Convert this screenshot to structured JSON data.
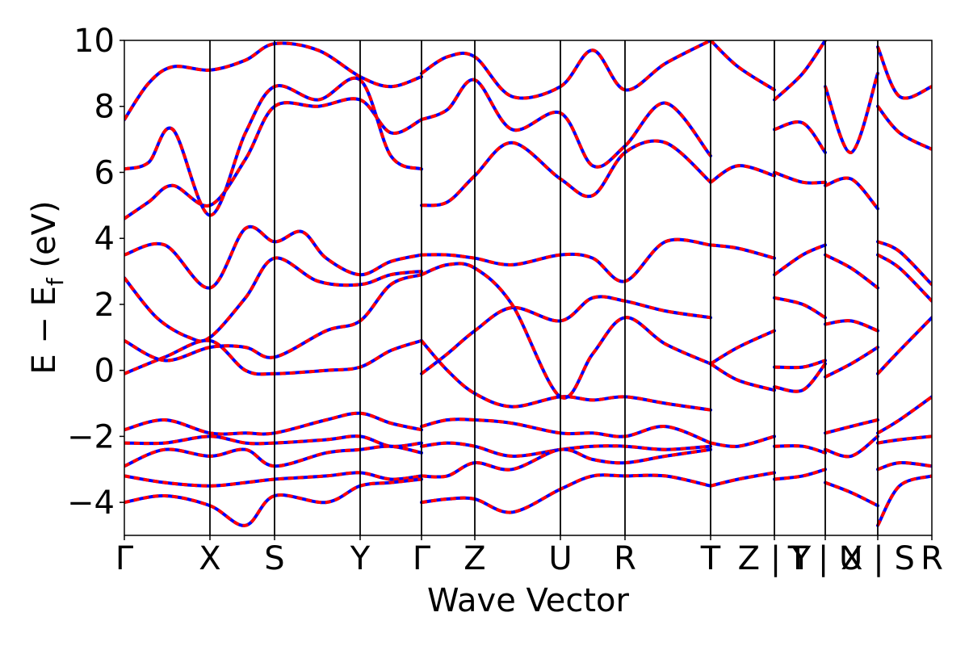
{
  "chart_data": {
    "type": "line",
    "title": "",
    "xlabel": "Wave Vector",
    "ylabel": "E − E",
    "ylabel_subscript": "f",
    "ylabel_unit": " (eV)",
    "ylim": [
      -5,
      10
    ],
    "yticks": [
      -4,
      -2,
      0,
      2,
      4,
      6,
      8,
      10
    ],
    "ytick_labels": [
      "−4",
      "−2",
      "0",
      "2",
      "4",
      "6",
      "8",
      "10"
    ],
    "k_points": [
      {
        "label": "Γ",
        "x": 0.0
      },
      {
        "label": "X",
        "x": 0.106
      },
      {
        "label": "S",
        "x": 0.186
      },
      {
        "label": "Y",
        "x": 0.292
      },
      {
        "label": "Γ",
        "x": 0.368
      },
      {
        "label": "Z",
        "x": 0.434
      },
      {
        "label": "U",
        "x": 0.54
      },
      {
        "label": "R",
        "x": 0.62
      },
      {
        "label": "T",
        "x": 0.726
      },
      {
        "label": "Z | Y",
        "x": 0.805
      },
      {
        "label": "T | U",
        "x": 0.868
      },
      {
        "label": "X | S",
        "x": 0.933
      },
      {
        "label": "R",
        "x": 1.0
      }
    ],
    "grid": false,
    "series": [
      {
        "color": "#0000ff",
        "style": "solid"
      },
      {
        "color": "#ff0000",
        "style": "dashed"
      }
    ],
    "bands": [
      {
        "x": [
          0.0,
          0.05,
          0.106,
          0.15,
          0.186,
          0.25,
          0.292,
          0.33,
          0.368
        ],
        "y": [
          -0.1,
          0.4,
          0.9,
          0.0,
          -0.1,
          0.0,
          0.1,
          0.6,
          0.9
        ]
      },
      {
        "x": [
          0.0,
          0.05,
          0.106,
          0.15,
          0.186,
          0.25,
          0.292,
          0.33,
          0.368
        ],
        "y": [
          0.9,
          0.3,
          0.7,
          0.7,
          0.4,
          1.2,
          1.5,
          2.6,
          2.9
        ]
      },
      {
        "x": [
          0.0,
          0.04,
          0.08,
          0.106,
          0.15,
          0.186,
          0.24,
          0.292,
          0.33,
          0.368
        ],
        "y": [
          2.8,
          1.6,
          1.0,
          1.0,
          2.2,
          3.4,
          2.7,
          2.6,
          2.9,
          3.0
        ]
      },
      {
        "x": [
          0.0,
          0.05,
          0.106,
          0.15,
          0.186,
          0.22,
          0.25,
          0.292,
          0.33,
          0.368
        ],
        "y": [
          3.5,
          3.8,
          2.5,
          4.3,
          3.9,
          4.2,
          3.4,
          2.9,
          3.3,
          3.5
        ]
      },
      {
        "x": [
          0.0,
          0.03,
          0.06,
          0.106,
          0.15,
          0.186,
          0.24,
          0.292,
          0.33,
          0.368
        ],
        "y": [
          4.6,
          5.1,
          5.6,
          5.0,
          6.4,
          8.0,
          8.0,
          8.2,
          7.2,
          7.6
        ]
      },
      {
        "x": [
          0.0,
          0.03,
          0.06,
          0.106,
          0.15,
          0.186,
          0.24,
          0.292,
          0.33,
          0.368
        ],
        "y": [
          6.1,
          6.3,
          7.3,
          4.7,
          7.2,
          8.6,
          8.2,
          8.8,
          6.5,
          6.1
        ]
      },
      {
        "x": [
          0.0,
          0.03,
          0.06,
          0.106,
          0.15,
          0.186,
          0.24,
          0.292,
          0.33,
          0.368
        ],
        "y": [
          7.6,
          8.7,
          9.2,
          9.1,
          9.4,
          9.9,
          9.7,
          8.9,
          8.6,
          8.9
        ]
      },
      {
        "x": [
          0.0,
          0.05,
          0.106,
          0.15,
          0.186,
          0.25,
          0.292,
          0.33,
          0.368
        ],
        "y": [
          -1.8,
          -1.5,
          -1.9,
          -1.9,
          -1.9,
          -1.5,
          -1.3,
          -1.6,
          -1.8
        ]
      },
      {
        "x": [
          0.0,
          0.05,
          0.106,
          0.15,
          0.186,
          0.25,
          0.292,
          0.33,
          0.368
        ],
        "y": [
          -2.2,
          -2.2,
          -2.0,
          -2.2,
          -2.2,
          -2.1,
          -2.0,
          -2.3,
          -2.2
        ]
      },
      {
        "x": [
          0.0,
          0.05,
          0.106,
          0.15,
          0.186,
          0.25,
          0.292,
          0.33,
          0.368
        ],
        "y": [
          -2.9,
          -2.4,
          -2.6,
          -2.4,
          -2.9,
          -2.5,
          -2.4,
          -2.3,
          -2.5
        ]
      },
      {
        "x": [
          0.0,
          0.05,
          0.106,
          0.15,
          0.186,
          0.25,
          0.292,
          0.33,
          0.368
        ],
        "y": [
          -3.2,
          -3.4,
          -3.5,
          -3.4,
          -3.3,
          -3.2,
          -3.1,
          -3.3,
          -3.2
        ]
      },
      {
        "x": [
          0.0,
          0.05,
          0.106,
          0.15,
          0.186,
          0.25,
          0.292,
          0.33,
          0.368
        ],
        "y": [
          -4.0,
          -3.8,
          -4.1,
          -4.7,
          -3.8,
          -4.0,
          -3.5,
          -3.4,
          -3.3
        ]
      },
      {
        "x": [
          0.368,
          0.4,
          0.434,
          0.48,
          0.54,
          0.58,
          0.62,
          0.67,
          0.726
        ],
        "y": [
          -0.1,
          0.5,
          1.2,
          1.9,
          1.5,
          2.2,
          2.1,
          1.8,
          1.6
        ]
      },
      {
        "x": [
          0.368,
          0.4,
          0.434,
          0.48,
          0.54,
          0.58,
          0.62,
          0.67,
          0.726
        ],
        "y": [
          0.9,
          0.0,
          -0.7,
          -1.1,
          -0.8,
          -0.9,
          -0.8,
          -1.0,
          -1.2
        ]
      },
      {
        "x": [
          0.368,
          0.4,
          0.434,
          0.48,
          0.54,
          0.58,
          0.62,
          0.67,
          0.726
        ],
        "y": [
          2.9,
          3.2,
          3.1,
          2.0,
          -0.8,
          0.5,
          1.6,
          0.8,
          0.2
        ]
      },
      {
        "x": [
          0.368,
          0.4,
          0.434,
          0.48,
          0.54,
          0.58,
          0.62,
          0.67,
          0.726
        ],
        "y": [
          3.5,
          3.5,
          3.4,
          3.2,
          3.5,
          3.4,
          2.7,
          3.9,
          3.8
        ]
      },
      {
        "x": [
          0.368,
          0.4,
          0.434,
          0.48,
          0.54,
          0.58,
          0.62,
          0.67,
          0.726
        ],
        "y": [
          5.0,
          5.1,
          5.9,
          6.9,
          5.8,
          5.3,
          6.6,
          6.9,
          5.7
        ]
      },
      {
        "x": [
          0.368,
          0.4,
          0.434,
          0.48,
          0.54,
          0.58,
          0.62,
          0.67,
          0.726
        ],
        "y": [
          7.6,
          7.9,
          8.8,
          7.3,
          7.8,
          6.2,
          6.8,
          8.1,
          6.5
        ]
      },
      {
        "x": [
          0.368,
          0.4,
          0.434,
          0.48,
          0.54,
          0.58,
          0.62,
          0.67,
          0.726
        ],
        "y": [
          9.0,
          9.5,
          9.5,
          8.3,
          8.6,
          9.7,
          8.5,
          9.3,
          10.0
        ]
      },
      {
        "x": [
          0.368,
          0.4,
          0.434,
          0.48,
          0.54,
          0.58,
          0.62,
          0.67,
          0.726
        ],
        "y": [
          -1.7,
          -1.5,
          -1.5,
          -1.6,
          -1.9,
          -1.9,
          -2.0,
          -1.7,
          -2.2
        ]
      },
      {
        "x": [
          0.368,
          0.4,
          0.434,
          0.48,
          0.54,
          0.58,
          0.62,
          0.67,
          0.726
        ],
        "y": [
          -2.3,
          -2.2,
          -2.3,
          -2.6,
          -2.4,
          -2.3,
          -2.3,
          -2.4,
          -2.3
        ]
      },
      {
        "x": [
          0.368,
          0.4,
          0.434,
          0.48,
          0.54,
          0.58,
          0.62,
          0.67,
          0.726
        ],
        "y": [
          -3.2,
          -3.2,
          -2.8,
          -3.0,
          -2.4,
          -2.7,
          -2.8,
          -2.6,
          -2.4
        ]
      },
      {
        "x": [
          0.368,
          0.4,
          0.434,
          0.48,
          0.54,
          0.58,
          0.62,
          0.67,
          0.726
        ],
        "y": [
          -4.0,
          -3.9,
          -3.9,
          -4.3,
          -3.6,
          -3.2,
          -3.2,
          -3.2,
          -3.5
        ]
      },
      {
        "x": [
          0.726,
          0.76,
          0.805
        ],
        "y": [
          0.2,
          0.7,
          1.2
        ]
      },
      {
        "x": [
          0.726,
          0.76,
          0.805
        ],
        "y": [
          0.2,
          -0.3,
          -0.6
        ]
      },
      {
        "x": [
          0.726,
          0.76,
          0.805
        ],
        "y": [
          3.8,
          3.7,
          3.4
        ]
      },
      {
        "x": [
          0.726,
          0.76,
          0.805
        ],
        "y": [
          5.7,
          6.2,
          5.9
        ]
      },
      {
        "x": [
          0.726,
          0.76,
          0.805
        ],
        "y": [
          10.0,
          9.2,
          8.5
        ]
      },
      {
        "x": [
          0.726,
          0.76,
          0.805
        ],
        "y": [
          -2.2,
          -2.3,
          -2.0
        ]
      },
      {
        "x": [
          0.726,
          0.76,
          0.805
        ],
        "y": [
          -3.5,
          -3.3,
          -3.1
        ]
      },
      {
        "x": [
          0.805,
          0.84,
          0.868
        ],
        "y": [
          2.9,
          3.5,
          3.8
        ]
      },
      {
        "x": [
          0.805,
          0.84,
          0.868
        ],
        "y": [
          2.2,
          2.0,
          1.6
        ]
      },
      {
        "x": [
          0.805,
          0.84,
          0.868
        ],
        "y": [
          0.1,
          0.1,
          0.3
        ]
      },
      {
        "x": [
          0.805,
          0.84,
          0.868
        ],
        "y": [
          -0.5,
          -0.6,
          0.2
        ]
      },
      {
        "x": [
          0.805,
          0.84,
          0.868
        ],
        "y": [
          6.0,
          5.7,
          5.7
        ]
      },
      {
        "x": [
          0.805,
          0.84,
          0.868
        ],
        "y": [
          7.3,
          7.5,
          6.6
        ]
      },
      {
        "x": [
          0.805,
          0.84,
          0.868
        ],
        "y": [
          8.2,
          9.0,
          10.0
        ]
      },
      {
        "x": [
          0.805,
          0.84,
          0.868
        ],
        "y": [
          -2.3,
          -2.3,
          -2.5
        ]
      },
      {
        "x": [
          0.805,
          0.84,
          0.868
        ],
        "y": [
          -3.3,
          -3.2,
          -3.0
        ]
      },
      {
        "x": [
          0.868,
          0.9,
          0.933
        ],
        "y": [
          3.5,
          3.1,
          2.5
        ]
      },
      {
        "x": [
          0.868,
          0.9,
          0.933
        ],
        "y": [
          1.4,
          1.5,
          1.2
        ]
      },
      {
        "x": [
          0.868,
          0.9,
          0.933
        ],
        "y": [
          -0.2,
          0.2,
          0.7
        ]
      },
      {
        "x": [
          0.868,
          0.9,
          0.933
        ],
        "y": [
          5.6,
          5.8,
          4.9
        ]
      },
      {
        "x": [
          0.868,
          0.9,
          0.933
        ],
        "y": [
          8.6,
          6.6,
          9.0
        ]
      },
      {
        "x": [
          0.868,
          0.9,
          0.933
        ],
        "y": [
          -1.9,
          -1.7,
          -1.5
        ]
      },
      {
        "x": [
          0.868,
          0.9,
          0.933
        ],
        "y": [
          -2.4,
          -2.6,
          -2.0
        ]
      },
      {
        "x": [
          0.868,
          0.9,
          0.933
        ],
        "y": [
          -3.4,
          -3.7,
          -4.1
        ]
      },
      {
        "x": [
          0.933,
          0.96,
          1.0
        ],
        "y": [
          -0.1,
          0.6,
          1.6
        ]
      },
      {
        "x": [
          0.933,
          0.96,
          1.0
        ],
        "y": [
          3.9,
          3.6,
          2.6
        ]
      },
      {
        "x": [
          0.933,
          0.96,
          1.0
        ],
        "y": [
          3.5,
          3.1,
          2.1
        ]
      },
      {
        "x": [
          0.933,
          0.96,
          1.0
        ],
        "y": [
          8.0,
          7.2,
          6.7
        ]
      },
      {
        "x": [
          0.933,
          0.96,
          1.0
        ],
        "y": [
          9.8,
          8.3,
          8.6
        ]
      },
      {
        "x": [
          0.933,
          0.96,
          1.0
        ],
        "y": [
          -1.9,
          -1.5,
          -0.8
        ]
      },
      {
        "x": [
          0.933,
          0.96,
          1.0
        ],
        "y": [
          -2.2,
          -2.1,
          -2.0
        ]
      },
      {
        "x": [
          0.933,
          0.96,
          1.0
        ],
        "y": [
          -3.0,
          -2.8,
          -2.9
        ]
      },
      {
        "x": [
          0.933,
          0.96,
          1.0
        ],
        "y": [
          -4.7,
          -3.5,
          -3.2
        ]
      }
    ]
  }
}
